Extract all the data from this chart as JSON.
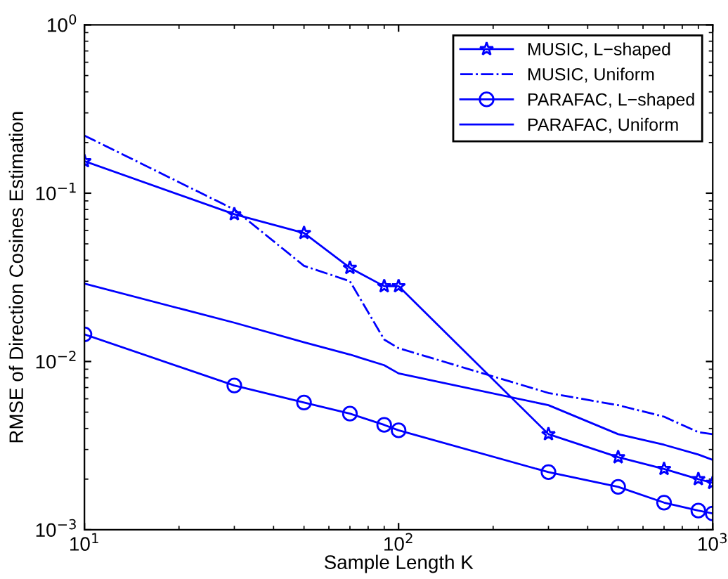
{
  "chart_data": {
    "type": "line",
    "xlabel": "Sample Length K",
    "ylabel": "RMSE of Direction Cosines Estimation",
    "log": "xy",
    "x": [
      10,
      30,
      50,
      70,
      90,
      100,
      300,
      500,
      700,
      900,
      1000
    ],
    "xlim": [
      10,
      1000
    ],
    "ylim": [
      0.001,
      1
    ],
    "xticks": [
      {
        "value": 10,
        "label": "10$^{1}$"
      },
      {
        "value": 100,
        "label": "10$^{2}$"
      },
      {
        "value": 1000,
        "label": "10$^{3}$"
      }
    ],
    "yticks": [
      {
        "value": 0.001,
        "label": "10$^{−3}$"
      },
      {
        "value": 0.01,
        "label": "10$^{−2}$"
      },
      {
        "value": 0.1,
        "label": "10$^{−1}$"
      },
      {
        "value": 1,
        "label": "10$^{0}$"
      }
    ],
    "grid": false,
    "legend": "top right",
    "series": [
      {
        "name": "MUSIC, L−shaped",
        "color": "#0000ff",
        "marker": "star",
        "line_style": "solid",
        "values": [
          0.155,
          0.075,
          0.058,
          0.036,
          0.028,
          0.028,
          0.0037,
          0.0027,
          0.0023,
          0.002,
          0.0019
        ]
      },
      {
        "name": "MUSIC, Uniform",
        "color": "#0000ff",
        "marker": "none",
        "line_style": "dashdot",
        "values": [
          0.22,
          0.08,
          0.037,
          0.03,
          0.0135,
          0.012,
          0.0065,
          0.0055,
          0.0047,
          0.0038,
          0.0037
        ]
      },
      {
        "name": "PARAFAC, L−shaped",
        "color": "#0000ff",
        "marker": "circle",
        "line_style": "solid",
        "values": [
          0.0145,
          0.0072,
          0.0057,
          0.0049,
          0.0042,
          0.0039,
          0.0022,
          0.0018,
          0.00145,
          0.0013,
          0.00125
        ]
      },
      {
        "name": "PARAFAC, Uniform",
        "color": "#0000ff",
        "marker": "none",
        "line_style": "solid",
        "values": [
          0.029,
          0.017,
          0.013,
          0.011,
          0.0095,
          0.0085,
          0.0055,
          0.0037,
          0.0032,
          0.0028,
          0.0026
        ]
      }
    ]
  }
}
